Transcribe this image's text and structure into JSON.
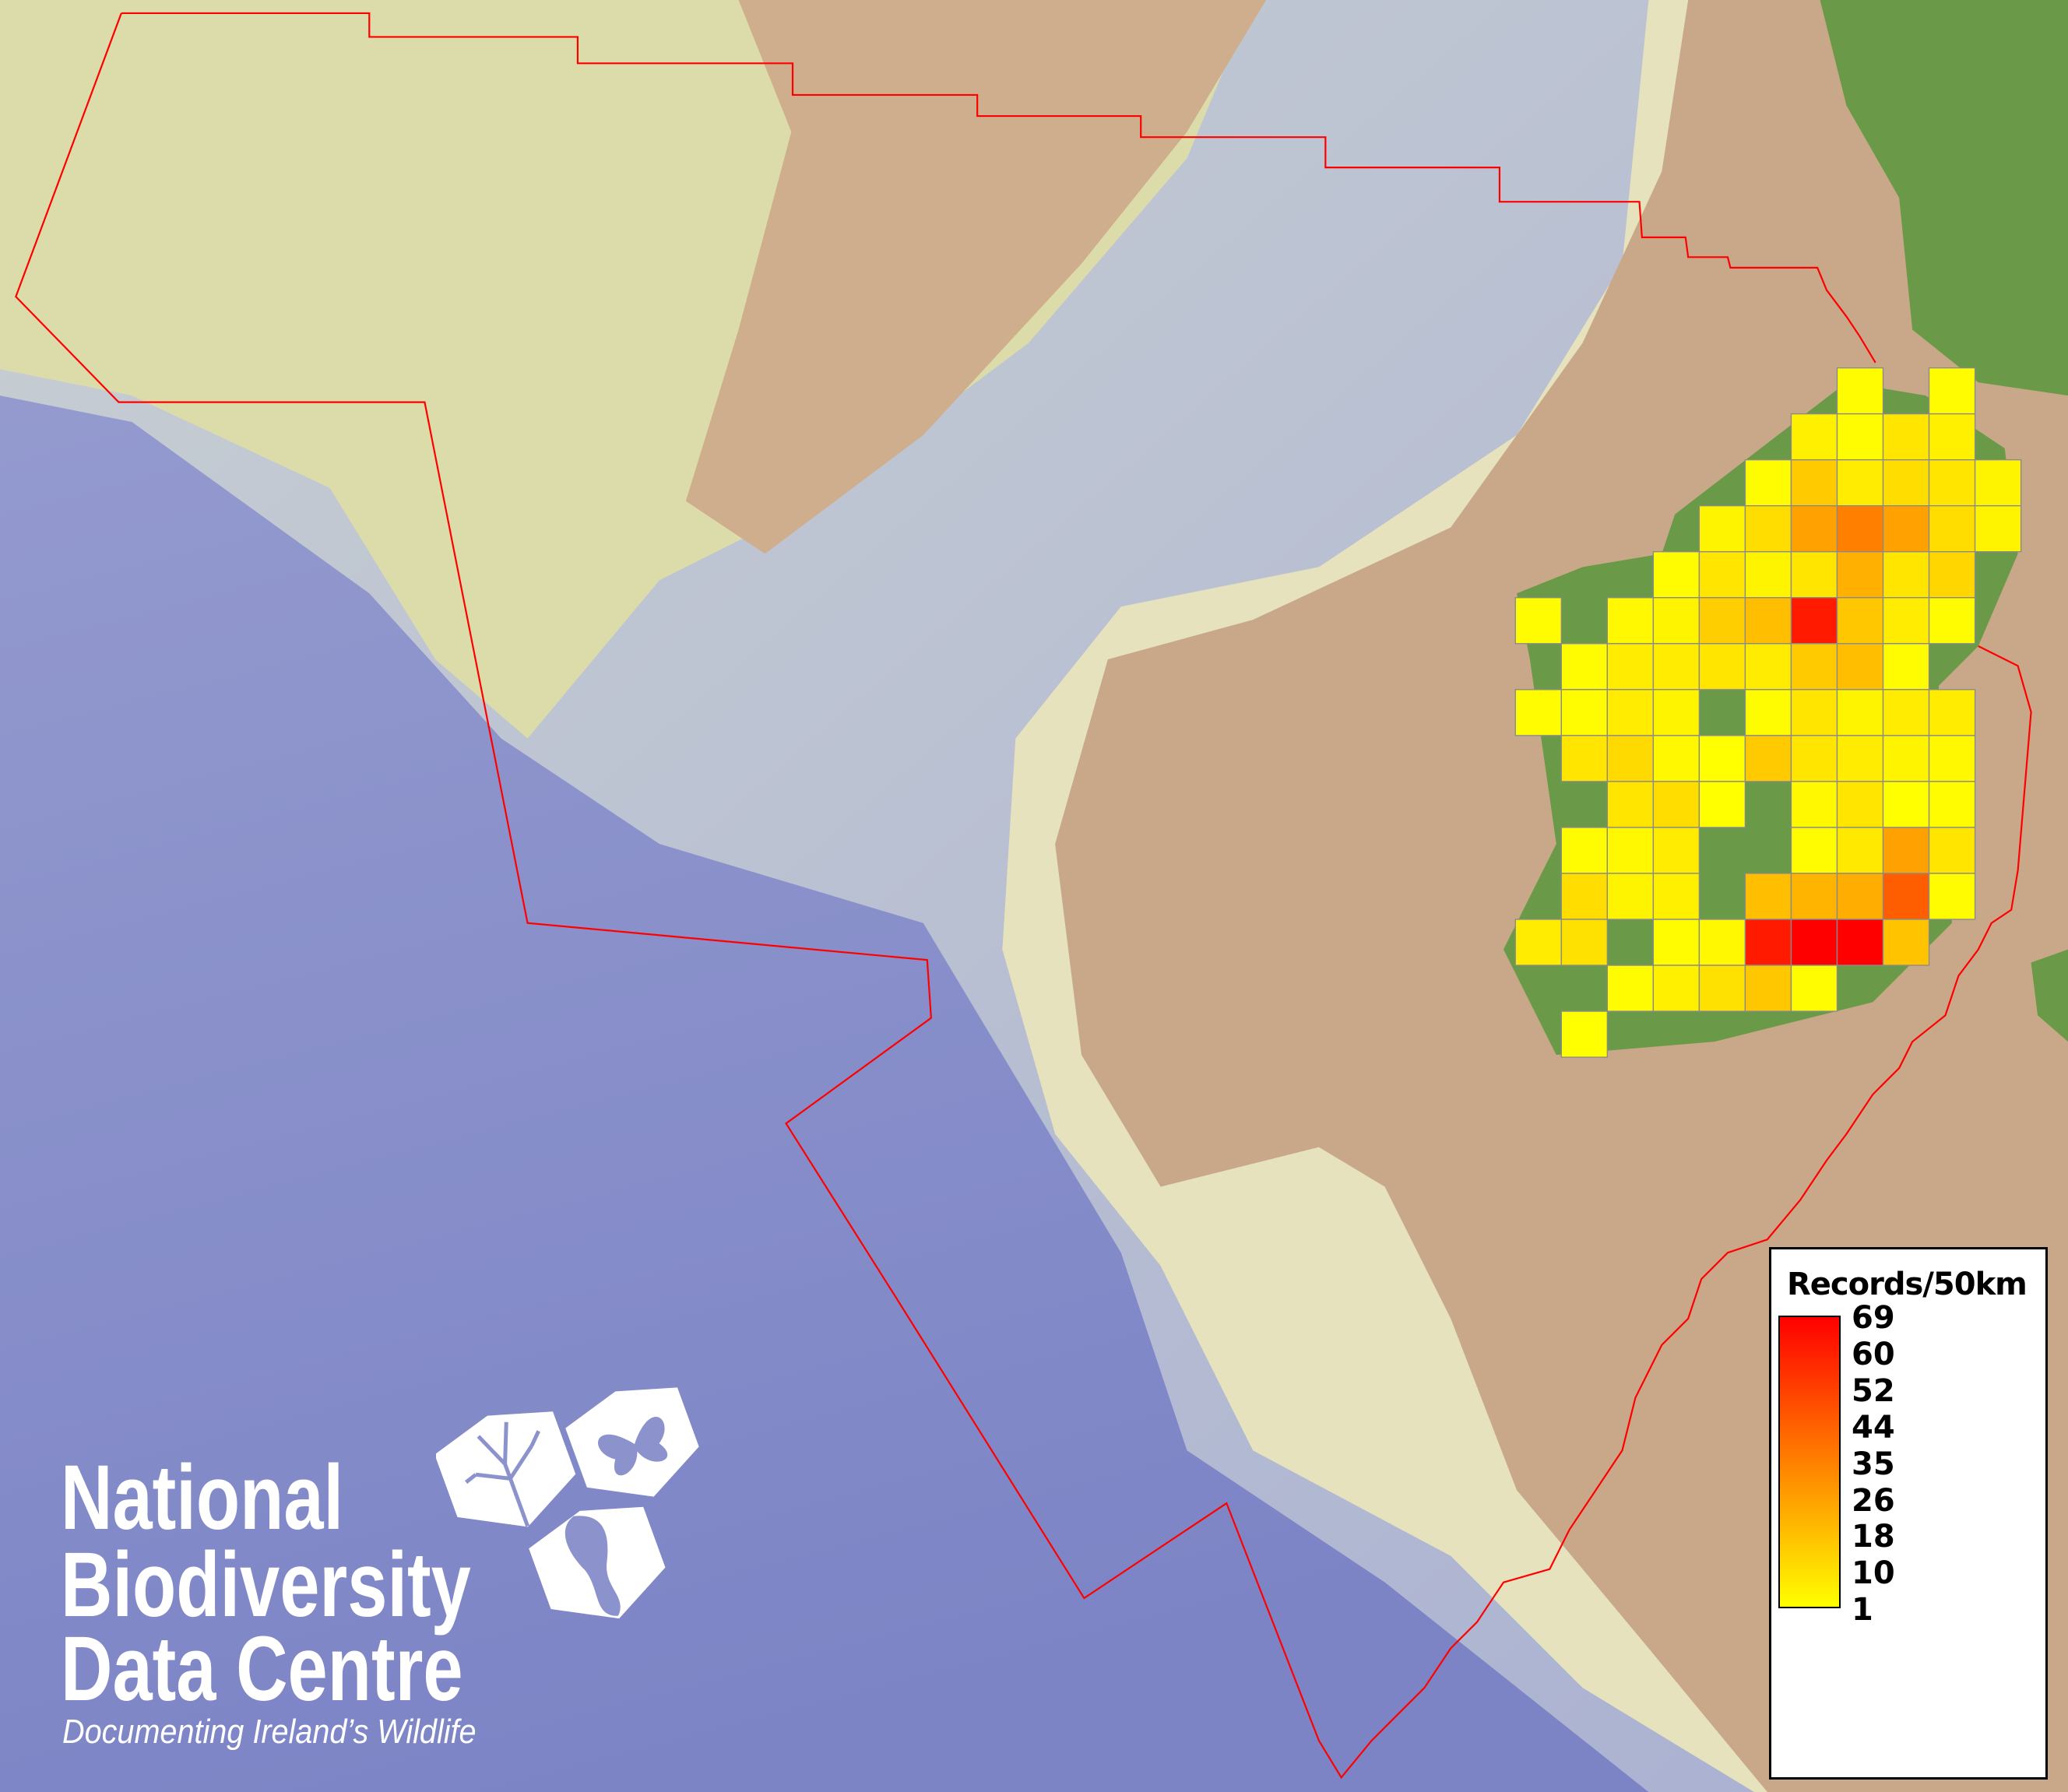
{
  "legend": {
    "title": "Records/50km",
    "labels": [
      "69",
      "60",
      "52",
      "44",
      "35",
      "26",
      "18",
      "10",
      "1"
    ],
    "min_value": 1,
    "max_value": 69,
    "color_low": "#ffff00",
    "color_high": "#ff0000"
  },
  "logo": {
    "line1": "National",
    "line2": "Biodiversity",
    "line3": "Data Centre",
    "tagline": "Documenting Ireland’s Wildlife",
    "icons": [
      "tree-icon",
      "butterfly-icon",
      "seahorse-icon"
    ]
  },
  "map": {
    "boundary_color": "#ff0000",
    "deep_sea_color": "#8088c8",
    "shelf_color": "#dcdcaa",
    "land_shelf_color": "#c9a88a",
    "land_color": "#6a9a48",
    "grid_rows": [
      [
        null,
        null,
        null,
        null,
        null,
        null,
        null,
        2,
        null,
        2,
        null
      ],
      [
        null,
        null,
        null,
        null,
        null,
        null,
        5,
        2,
        8,
        5,
        null
      ],
      [
        null,
        null,
        null,
        null,
        null,
        2,
        15,
        6,
        10,
        8,
        4
      ],
      [
        null,
        null,
        null,
        null,
        4,
        10,
        26,
        35,
        26,
        10,
        4
      ],
      [
        null,
        null,
        null,
        2,
        8,
        4,
        8,
        22,
        8,
        12,
        null
      ],
      [
        2,
        null,
        3,
        4,
        14,
        18,
        62,
        16,
        6,
        2,
        null
      ],
      [
        null,
        2,
        6,
        6,
        8,
        6,
        15,
        18,
        2,
        null,
        null
      ],
      [
        2,
        2,
        6,
        4,
        null,
        2,
        8,
        4,
        6,
        6,
        null
      ],
      [
        null,
        8,
        11,
        3,
        1,
        15,
        8,
        6,
        4,
        3,
        null
      ],
      [
        null,
        null,
        8,
        10,
        1,
        null,
        3,
        8,
        1,
        2,
        null
      ],
      [
        null,
        2,
        3,
        6,
        null,
        null,
        2,
        7,
        26,
        8,
        null
      ],
      [
        null,
        10,
        4,
        5,
        null,
        18,
        21,
        23,
        44,
        2,
        null
      ],
      [
        6,
        9,
        null,
        2,
        3,
        62,
        69,
        69,
        17,
        null,
        null
      ],
      [
        null,
        null,
        2,
        5,
        9,
        16,
        2,
        null,
        null,
        null,
        null
      ],
      [
        null,
        1,
        null,
        null,
        null,
        null,
        null,
        null,
        null,
        null,
        null
      ]
    ]
  }
}
